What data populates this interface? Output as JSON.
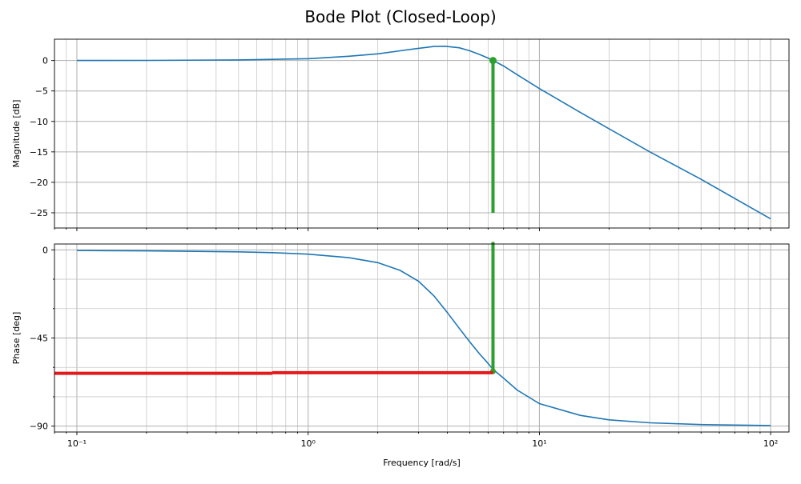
{
  "colors": {
    "curve": "#1f77b4",
    "crossover_marker": "#2ca02c",
    "phase_marker": "#e31a1c",
    "grid": "#b0b0b0"
  },
  "chart_data": {
    "type": "line",
    "title": "Bode Plot (Closed-Loop)",
    "subplots": [
      {
        "id": "magnitude",
        "ylabel": "Magnitude [dB]",
        "xscale": "log",
        "xlim": [
          0.08,
          120
        ],
        "ylim": [
          -27.5,
          3.5
        ],
        "yticks": [
          0,
          -5,
          -10,
          -15,
          -20,
          -25
        ],
        "yticklabels": [
          "0",
          "−5",
          "−10",
          "−15",
          "−20",
          "−25"
        ],
        "show_xticklabels": false,
        "grid": "major and minor",
        "series": [
          {
            "x": [
              0.1,
              0.2,
              0.5,
              1,
              1.5,
              2,
              2.5,
              3,
              3.5,
              3.9,
              4.5,
              5,
              5.5,
              6,
              6.3,
              7,
              8,
              10,
              15,
              20,
              30,
              50,
              100
            ],
            "y": [
              0.0,
              0.02,
              0.1,
              0.3,
              0.7,
              1.1,
              1.6,
              2.0,
              2.3,
              2.35,
              2.1,
              1.6,
              1.0,
              0.4,
              0.0,
              -0.9,
              -2.3,
              -4.6,
              -8.5,
              -11.2,
              -15.0,
              -19.5,
              -26.0
            ]
          }
        ],
        "markers": [
          {
            "kind": "vertical",
            "x": 6.3,
            "y_from": 0.0,
            "y_to": -25.0
          }
        ]
      },
      {
        "id": "phase",
        "ylabel": "Phase [deg]",
        "xscale": "log",
        "xlim": [
          0.08,
          120
        ],
        "ylim": [
          -93,
          3
        ],
        "yticks": [
          0,
          -45,
          -90
        ],
        "yticklabels": [
          "0",
          "−45",
          "−90"
        ],
        "xticks": [
          0.1,
          1,
          10,
          100
        ],
        "xticklabels": [
          "10⁻¹",
          "10⁰",
          "10¹",
          "10²"
        ],
        "xlabel": "Frequency [rad/s]",
        "grid": "major and minor",
        "series": [
          {
            "x": [
              0.1,
              0.2,
              0.5,
              0.7,
              1,
              1.5,
              2,
              2.5,
              3,
              3.5,
              4,
              4.5,
              5,
              5.5,
              6,
              6.3,
              7,
              8,
              10,
              15,
              20,
              30,
              50,
              100
            ],
            "y": [
              -0.3,
              -0.5,
              -1.0,
              -1.4,
              -2.2,
              -4.0,
              -6.5,
              -10.5,
              -16.0,
              -23.5,
              -32.0,
              -40.0,
              -47.0,
              -53.0,
              -58.0,
              -61.0,
              -65.5,
              -71.5,
              -78.5,
              -84.5,
              -86.8,
              -88.3,
              -89.2,
              -89.7
            ]
          }
        ],
        "markers": [
          {
            "kind": "vertical",
            "x": 6.3,
            "y_from": 4.0,
            "y_to": -62.0
          },
          {
            "kind": "horizontal",
            "y": -63.0,
            "x_from": 0.08,
            "x_to": 0.7
          },
          {
            "kind": "horizontal",
            "y": -62.7,
            "x_from": 0.7,
            "x_to": 6.3
          }
        ]
      }
    ]
  }
}
